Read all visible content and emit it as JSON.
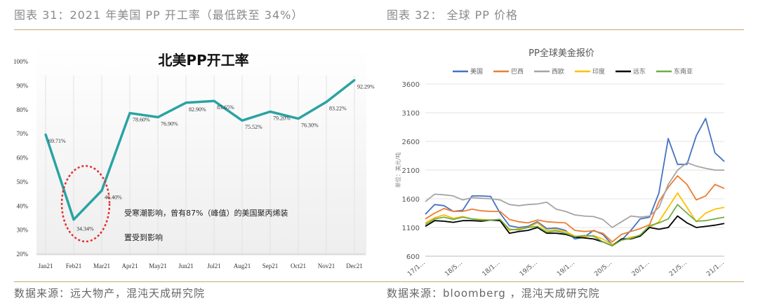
{
  "left_caption": "图表 31：2021 年美国 PP 开工率（最低跌至 34%）",
  "right_caption": "图表 32： 全球 PP 价格",
  "left_source": "数据来源：远大物产，混沌天成研究院",
  "right_source": "数据来源：bloomberg ，混沌天成研究院",
  "chart_data": [
    {
      "type": "line",
      "title": "北美PP开工率",
      "categories": [
        "Jan21",
        "Feb21",
        "Mar21",
        "Apr21",
        "May21",
        "Jun21",
        "Jul21",
        "Aug21",
        "Sep21",
        "Oct21",
        "Nov21",
        "Dec21"
      ],
      "values": [
        69.71,
        34.34,
        46.4,
        78.6,
        76.9,
        82.9,
        83.65,
        75.52,
        79.2,
        76.3,
        83.22,
        92.29
      ],
      "data_labels": [
        "69.71%",
        "34.34%",
        "46.40%",
        "78.60%",
        "76.90%",
        "82.90%",
        "83.65%",
        "75.52%",
        "79.20%",
        "76.30%",
        "83.22%",
        "92.29%"
      ],
      "yticks": [
        "20%",
        "30%",
        "40%",
        "50%",
        "60%",
        "70%",
        "80%",
        "90%",
        "100%"
      ],
      "ylim": [
        20,
        100
      ],
      "color": "#2aa3a3",
      "annotation": "受寒潮影响，曾有87%（峰值）的美国聚丙烯装置受到影响",
      "annotation_lines": [
        "受寒潮影响，曾有87%（峰值）的美国聚丙烯装",
        "置受到影响"
      ],
      "highlight_color": "#e03030",
      "grid": "vertical"
    },
    {
      "type": "line",
      "title": "PP全球美金报价",
      "ylabel": "单位：美元/吨",
      "xticks": [
        "17/1…",
        "18/5…",
        "18/1…",
        "19/5…",
        "19/1…",
        "20/5…",
        "20/1…",
        "21/5…",
        "21/1…"
      ],
      "yticks": [
        600,
        1100,
        1600,
        2100,
        2600,
        3100,
        3600
      ],
      "ylim": [
        600,
        3600
      ],
      "legend": "top",
      "grid": "horizontal",
      "series": [
        {
          "name": "美国",
          "color": "#4472c4",
          "values": [
            1330,
            1500,
            1480,
            1380,
            1400,
            1650,
            1650,
            1640,
            1350,
            1130,
            1100,
            1120,
            1200,
            1080,
            1090,
            1050,
            900,
            930,
            1050,
            980,
            800,
            880,
            1050,
            1250,
            1280,
            1700,
            2650,
            2200,
            2200,
            2700,
            3000,
            2400,
            2250
          ]
        },
        {
          "name": "巴西",
          "color": "#ed7d31",
          "values": [
            1250,
            1350,
            1430,
            1380,
            1380,
            1420,
            1390,
            1380,
            1380,
            1240,
            1200,
            1180,
            1230,
            1200,
            1190,
            1180,
            1050,
            1030,
            1040,
            1000,
            850,
            980,
            1030,
            1080,
            1150,
            1550,
            1800,
            2000,
            1850,
            1580,
            1650,
            1850,
            1780
          ]
        },
        {
          "name": "西欧",
          "color": "#a5a5a5",
          "values": [
            1550,
            1680,
            1670,
            1650,
            1580,
            1620,
            1610,
            1600,
            1580,
            1500,
            1480,
            1500,
            1510,
            1540,
            1420,
            1380,
            1320,
            1300,
            1290,
            1240,
            1100,
            1200,
            1300,
            1280,
            1300,
            1450,
            1850,
            2100,
            2230,
            2170,
            2130,
            2100,
            2100
          ]
        },
        {
          "name": "印度",
          "color": "#ffc000",
          "values": [
            1180,
            1270,
            1320,
            1260,
            1290,
            1250,
            1240,
            1230,
            1240,
            1050,
            1080,
            1100,
            1180,
            1050,
            1060,
            1030,
            950,
            940,
            960,
            900,
            800,
            880,
            930,
            960,
            1100,
            1200,
            1450,
            1700,
            1450,
            1200,
            1350,
            1420,
            1450
          ]
        },
        {
          "name": "远东",
          "color": "#000000",
          "values": [
            1120,
            1220,
            1210,
            1190,
            1220,
            1220,
            1210,
            1230,
            1220,
            1000,
            1030,
            1050,
            1100,
            1000,
            1000,
            980,
            930,
            920,
            900,
            850,
            780,
            900,
            900,
            950,
            1100,
            1070,
            1100,
            1300,
            1180,
            1100,
            1120,
            1140,
            1170
          ]
        },
        {
          "name": "东南亚",
          "color": "#70ad47",
          "values": [
            1150,
            1250,
            1280,
            1240,
            1280,
            1250,
            1230,
            1230,
            1240,
            1070,
            1060,
            1100,
            1120,
            1020,
            1040,
            1000,
            940,
            960,
            950,
            850,
            780,
            880,
            910,
            970,
            1130,
            1180,
            1250,
            1500,
            1350,
            1210,
            1220,
            1250,
            1280
          ]
        }
      ]
    }
  ]
}
